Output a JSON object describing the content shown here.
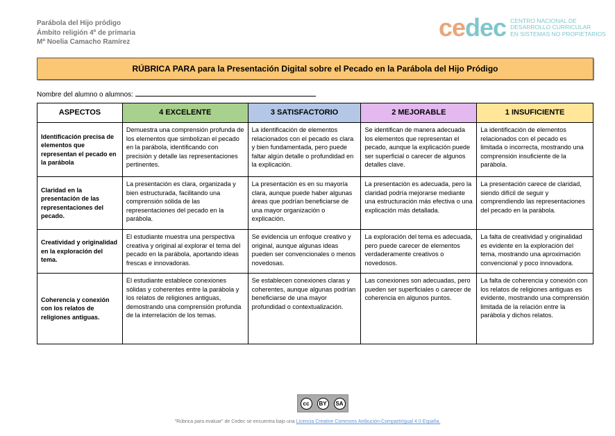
{
  "meta": {
    "line1": "Parábola del Hijo pródigo",
    "line2": "Ámbito religión 4º de primaria",
    "line3": "Mª Noelia Camacho Ramírez"
  },
  "logo": {
    "word": "cedec",
    "sub1": "CENTRO NACIONAL DE",
    "sub2": "DESARROLLO CURRICULAR",
    "sub3": "EN SISTEMAS NO PROPIETARIOS"
  },
  "title": "RÚBRICA PARA para la Presentación Digital sobre el Pecado en la Parábola del Hijo Pródigo",
  "name_label": "Nombre del alumno o alumnos:",
  "colors": {
    "excelente": "#a9d18e",
    "satisfactorio": "#b4c7e7",
    "mejorable": "#e4b9f0",
    "insuficiente": "#ffe699",
    "title_bg": "#fcc774"
  },
  "headers": [
    "ASPECTOS",
    "4 EXCELENTE",
    "3 SATISFACTORIO",
    "2 MEJORABLE",
    "1 INSUFICIENTE"
  ],
  "rows": [
    [
      "Identificación precisa de elementos que representan el pecado en la parábola",
      "Demuestra una comprensión profunda de los elementos que simbolizan el pecado en la parábola, identificando con precisión y detalle las representaciones pertinentes.",
      "La identificación de elementos relacionados con el pecado es clara y bien fundamentada, pero puede faltar algún detalle o profundidad en la explicación.",
      "Se identifican de manera adecuada los elementos que representan el pecado, aunque la explicación puede ser superficial o carecer de algunos detalles clave.",
      "La identificación de elementos relacionados con el pecado es limitada o incorrecta, mostrando una comprensión insuficiente de la parábola."
    ],
    [
      "Claridad en la presentación de las representaciones del pecado.",
      "La presentación es clara, organizada y bien estructurada, facilitando una comprensión sólida de las representaciones del pecado en la parábola.",
      "La presentación es en su mayoría clara, aunque puede haber algunas áreas que podrían beneficiarse de una mayor organización o explicación.",
      "La presentación es adecuada, pero la claridad podría mejorarse mediante una estructuración más efectiva o una explicación más detallada.",
      "La presentación carece de claridad, siendo difícil de seguir y comprendiendo las representaciones del pecado en la parábola."
    ],
    [
      "Creatividad y originalidad en la exploración del tema.",
      "El estudiante muestra una perspectiva creativa y original al explorar el tema del pecado en la parábola, aportando ideas frescas e innovadoras.",
      "Se evidencia un enfoque creativo y original, aunque algunas ideas pueden ser convencionales o menos novedosas.",
      "La exploración del tema es adecuada, pero puede carecer de elementos verdaderamente creativos o novedosos.",
      "La falta de creatividad y originalidad es evidente en la exploración del tema, mostrando una aproximación convencional y poco innovadora."
    ],
    [
      "Coherencia y conexión con los relatos de religiones antiguas.",
      "El estudiante establece conexiones sólidas y coherentes entre la parábola y los relatos de religiones antiguas, demostrando una comprensión profunda de la interrelación de los temas.",
      "Se establecen conexiones claras y coherentes, aunque algunas podrían beneficiarse de una mayor profundidad o contextualización.",
      "Las conexiones son adecuadas, pero pueden ser superficiales o carecer de coherencia en algunos puntos.",
      "La falta de coherencia y conexión con los relatos de religiones antiguas es evidente, mostrando una comprensión limitada de la relación entre la parábola y dichos relatos."
    ]
  ],
  "license": {
    "badge_by": "BY",
    "badge_sa": "SA",
    "text": "\"Rúbrica para evaluar\" de Cedec se encuentra bajo una ",
    "link": "Licencia Creative Commons Atribución-CompartirIgual 4.0 España."
  }
}
